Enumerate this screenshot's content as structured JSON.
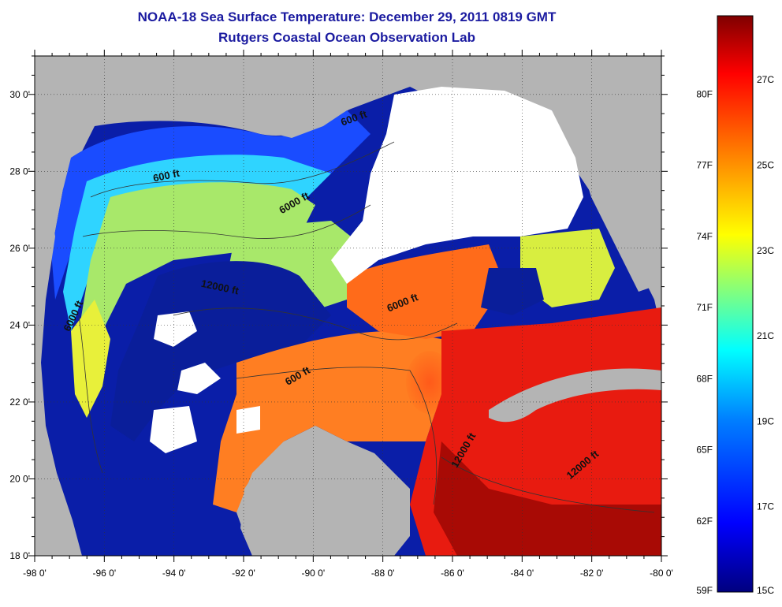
{
  "title": {
    "line1": "NOAA-18 Sea Surface Temperature:  December 29, 2011 0819 GMT",
    "line2": "Rutgers Coastal Ocean Observation Lab"
  },
  "map": {
    "lon_range": [
      -98,
      -80
    ],
    "lat_range": [
      18,
      31
    ],
    "lon_ticks": [
      "-98 0'",
      "-96 0'",
      "-94 0'",
      "-92 0'",
      "-90 0'",
      "-88 0'",
      "-86 0'",
      "-84 0'",
      "-82 0'",
      "-80 0'"
    ],
    "lat_ticks": [
      "18 0'",
      "20 0'",
      "22 0'",
      "24 0'",
      "26 0'",
      "28 0'",
      "30 0'"
    ],
    "grid": "dotted",
    "land_color": "#b4b4b4",
    "cloud_color": "#ffffff"
  },
  "contour_labels": [
    {
      "text": "600 ft",
      "lon": -94.2,
      "lat": 27.8,
      "angle": -12
    },
    {
      "text": "600 ft",
      "lon": -88.8,
      "lat": 29.3,
      "angle": -20
    },
    {
      "text": "6000 ft",
      "lon": -90.5,
      "lat": 27.1,
      "angle": -30
    },
    {
      "text": "12000 ft",
      "lon": -92.7,
      "lat": 24.9,
      "angle": 12
    },
    {
      "text": "6000 ft",
      "lon": -96.8,
      "lat": 24.2,
      "angle": -65
    },
    {
      "text": "6000 ft",
      "lon": -87.4,
      "lat": 24.5,
      "angle": -22
    },
    {
      "text": "600 ft",
      "lon": -90.4,
      "lat": 22.6,
      "angle": -30
    },
    {
      "text": "12000 ft",
      "lon": -85.6,
      "lat": 20.7,
      "angle": -60
    },
    {
      "text": "12000 ft",
      "lon": -82.2,
      "lat": 20.3,
      "angle": -40
    }
  ],
  "colorbar": {
    "fahrenheit_labels": [
      {
        "text": "80F",
        "f": 80
      },
      {
        "text": "77F",
        "f": 77
      },
      {
        "text": "74F",
        "f": 74
      },
      {
        "text": "71F",
        "f": 71
      },
      {
        "text": "68F",
        "f": 68
      },
      {
        "text": "65F",
        "f": 65
      },
      {
        "text": "62F",
        "f": 62
      },
      {
        "text": "59F",
        "f": 59
      }
    ],
    "celsius_labels": [
      {
        "text": "27C",
        "c": 27
      },
      {
        "text": "25C",
        "c": 25
      },
      {
        "text": "23C",
        "c": 23
      },
      {
        "text": "21C",
        "c": 21
      },
      {
        "text": "19C",
        "c": 19
      },
      {
        "text": "17C",
        "c": 17
      },
      {
        "text": "15C",
        "c": 15
      }
    ],
    "colors_low_to_high": [
      "#00007f",
      "#0000ff",
      "#0080ff",
      "#00ffff",
      "#80ff80",
      "#ffff00",
      "#ff8000",
      "#ff0000",
      "#7f0000"
    ]
  }
}
